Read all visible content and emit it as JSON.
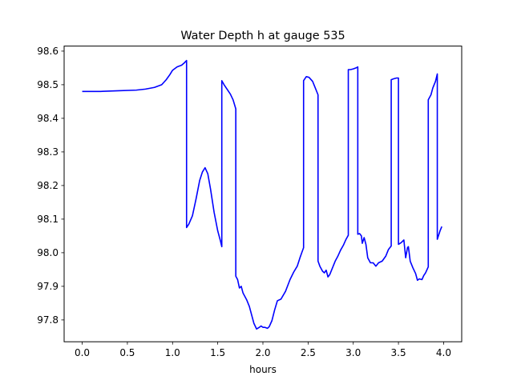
{
  "chart_data": {
    "type": "line",
    "title": "Water Depth h at gauge 535",
    "xlabel": "hours",
    "ylabel": "",
    "xlim": [
      -0.2,
      4.2
    ],
    "ylim": [
      97.735,
      98.615
    ],
    "xticks": [
      0.0,
      0.5,
      1.0,
      1.5,
      2.0,
      2.5,
      3.0,
      3.5,
      4.0
    ],
    "xtick_labels": [
      "0.0",
      "0.5",
      "1.0",
      "1.5",
      "2.0",
      "2.5",
      "3.0",
      "3.5",
      "4.0"
    ],
    "yticks": [
      97.8,
      97.9,
      98.0,
      98.1,
      98.2,
      98.3,
      98.4,
      98.5,
      98.6
    ],
    "ytick_labels": [
      "97.8",
      "97.9",
      "98.0",
      "98.1",
      "98.2",
      "98.3",
      "98.4",
      "98.5",
      "98.6"
    ],
    "grid": false,
    "series": [
      {
        "color": "#0000ff",
        "points": [
          [
            0.0,
            98.48
          ],
          [
            0.2,
            98.48
          ],
          [
            0.4,
            98.482
          ],
          [
            0.6,
            98.484
          ],
          [
            0.7,
            98.487
          ],
          [
            0.8,
            98.492
          ],
          [
            0.88,
            98.5
          ],
          [
            0.93,
            98.515
          ],
          [
            0.97,
            98.53
          ],
          [
            1.0,
            98.543
          ],
          [
            1.05,
            98.553
          ],
          [
            1.1,
            98.558
          ],
          [
            1.13,
            98.565
          ],
          [
            1.155,
            98.572
          ],
          [
            1.155,
            98.075
          ],
          [
            1.18,
            98.085
          ],
          [
            1.22,
            98.11
          ],
          [
            1.26,
            98.16
          ],
          [
            1.3,
            98.215
          ],
          [
            1.33,
            98.24
          ],
          [
            1.36,
            98.253
          ],
          [
            1.39,
            98.235
          ],
          [
            1.42,
            98.19
          ],
          [
            1.46,
            98.12
          ],
          [
            1.5,
            98.065
          ],
          [
            1.53,
            98.035
          ],
          [
            1.545,
            98.018
          ],
          [
            1.545,
            98.512
          ],
          [
            1.57,
            98.5
          ],
          [
            1.6,
            98.488
          ],
          [
            1.64,
            98.472
          ],
          [
            1.67,
            98.455
          ],
          [
            1.7,
            98.428
          ],
          [
            1.7,
            97.93
          ],
          [
            1.72,
            97.92
          ],
          [
            1.74,
            97.895
          ],
          [
            1.76,
            97.9
          ],
          [
            1.78,
            97.88
          ],
          [
            1.8,
            97.87
          ],
          [
            1.82,
            97.86
          ],
          [
            1.85,
            97.84
          ],
          [
            1.88,
            97.81
          ],
          [
            1.9,
            97.79
          ],
          [
            1.93,
            97.773
          ],
          [
            1.96,
            97.778
          ],
          [
            1.98,
            97.782
          ],
          [
            2.0,
            97.778
          ],
          [
            2.02,
            97.778
          ],
          [
            2.05,
            97.775
          ],
          [
            2.07,
            97.78
          ],
          [
            2.1,
            97.798
          ],
          [
            2.13,
            97.83
          ],
          [
            2.16,
            97.857
          ],
          [
            2.2,
            97.862
          ],
          [
            2.25,
            97.885
          ],
          [
            2.3,
            97.92
          ],
          [
            2.34,
            97.942
          ],
          [
            2.38,
            97.96
          ],
          [
            2.41,
            97.985
          ],
          [
            2.43,
            98.0
          ],
          [
            2.45,
            98.015
          ],
          [
            2.45,
            98.512
          ],
          [
            2.48,
            98.524
          ],
          [
            2.51,
            98.522
          ],
          [
            2.55,
            98.51
          ],
          [
            2.58,
            98.49
          ],
          [
            2.61,
            98.47
          ],
          [
            2.61,
            97.975
          ],
          [
            2.63,
            97.96
          ],
          [
            2.66,
            97.945
          ],
          [
            2.68,
            97.94
          ],
          [
            2.7,
            97.948
          ],
          [
            2.72,
            97.928
          ],
          [
            2.74,
            97.935
          ],
          [
            2.77,
            97.955
          ],
          [
            2.8,
            97.975
          ],
          [
            2.83,
            97.99
          ],
          [
            2.86,
            98.008
          ],
          [
            2.89,
            98.022
          ],
          [
            2.92,
            98.04
          ],
          [
            2.945,
            98.052
          ],
          [
            2.945,
            98.545
          ],
          [
            2.97,
            98.545
          ],
          [
            3.0,
            98.547
          ],
          [
            3.03,
            98.55
          ],
          [
            3.05,
            98.553
          ],
          [
            3.05,
            98.055
          ],
          [
            3.07,
            98.057
          ],
          [
            3.09,
            98.05
          ],
          [
            3.1,
            98.028
          ],
          [
            3.12,
            98.045
          ],
          [
            3.14,
            98.025
          ],
          [
            3.16,
            97.985
          ],
          [
            3.19,
            97.97
          ],
          [
            3.22,
            97.97
          ],
          [
            3.25,
            97.96
          ],
          [
            3.28,
            97.97
          ],
          [
            3.32,
            97.975
          ],
          [
            3.36,
            97.99
          ],
          [
            3.39,
            98.01
          ],
          [
            3.42,
            98.02
          ],
          [
            3.42,
            98.515
          ],
          [
            3.45,
            98.518
          ],
          [
            3.48,
            98.52
          ],
          [
            3.5,
            98.52
          ],
          [
            3.5,
            98.025
          ],
          [
            3.53,
            98.03
          ],
          [
            3.56,
            98.038
          ],
          [
            3.58,
            97.985
          ],
          [
            3.6,
            98.015
          ],
          [
            3.61,
            98.018
          ],
          [
            3.63,
            97.975
          ],
          [
            3.66,
            97.955
          ],
          [
            3.69,
            97.938
          ],
          [
            3.71,
            97.918
          ],
          [
            3.73,
            97.922
          ],
          [
            3.76,
            97.92
          ],
          [
            3.78,
            97.932
          ],
          [
            3.8,
            97.94
          ],
          [
            3.83,
            97.958
          ],
          [
            3.83,
            98.455
          ],
          [
            3.86,
            98.47
          ],
          [
            3.88,
            98.49
          ],
          [
            3.91,
            98.51
          ],
          [
            3.93,
            98.532
          ],
          [
            3.93,
            98.04
          ],
          [
            3.96,
            98.065
          ],
          [
            3.98,
            98.078
          ]
        ]
      }
    ]
  }
}
